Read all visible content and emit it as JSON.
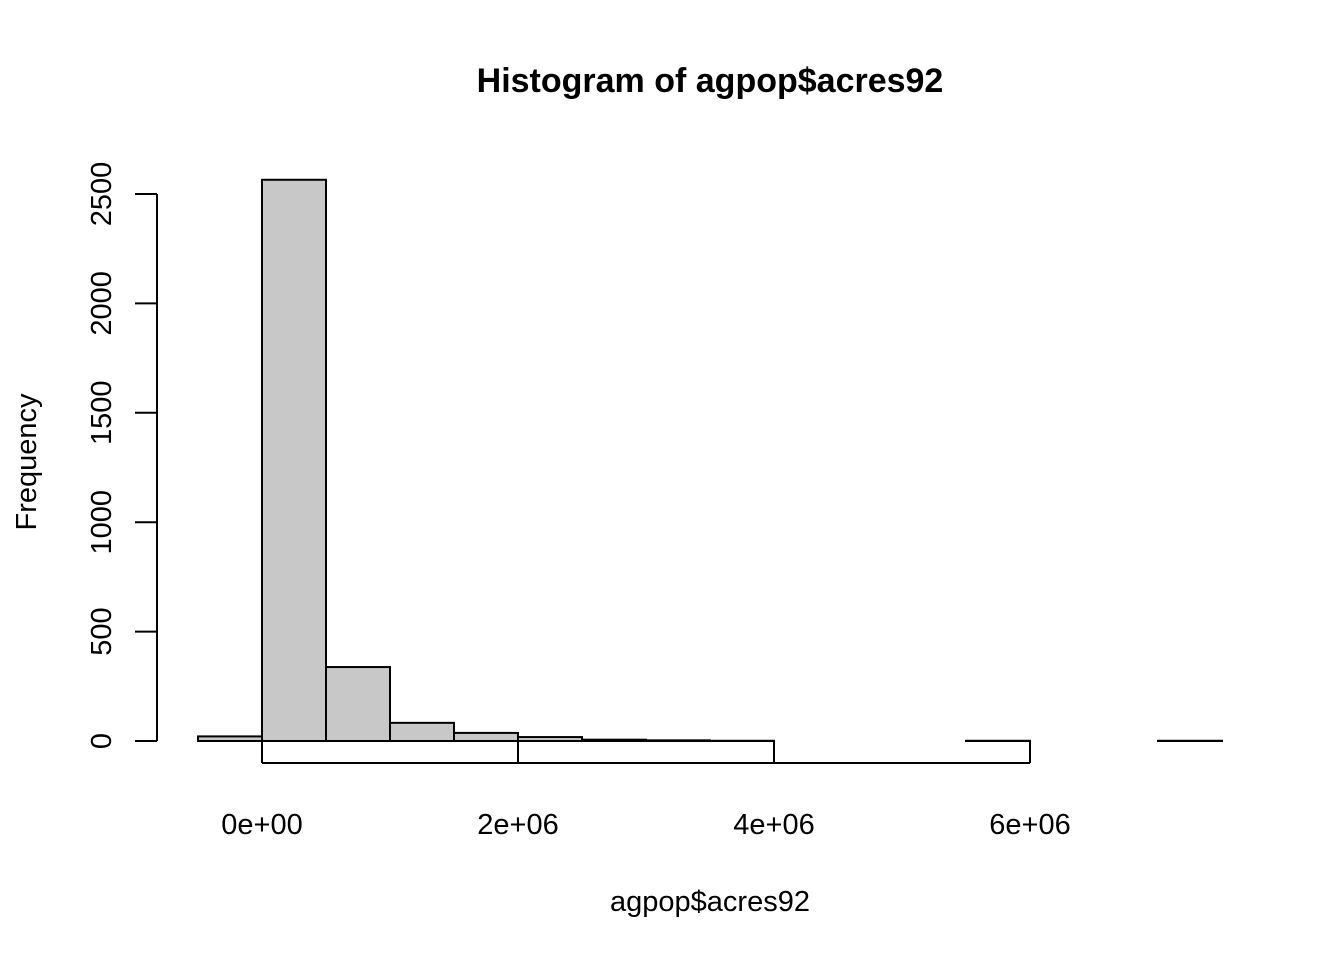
{
  "chart_data": {
    "type": "bar",
    "title": "Histogram of agpop$acres92",
    "xlabel": "agpop$acres92",
    "ylabel": "Frequency",
    "bin_edges": [
      -500000,
      0,
      500000,
      1000000,
      1500000,
      2000000,
      2500000,
      3000000,
      3500000,
      4000000,
      4500000,
      5000000,
      5500000,
      6000000,
      6500000,
      7000000,
      7500000
    ],
    "values": [
      21,
      2565,
      338,
      83,
      37,
      18,
      6,
      3,
      1,
      0,
      0,
      0,
      1,
      0,
      0,
      1
    ],
    "xlim": [
      -500000,
      7500000
    ],
    "ylim": [
      0,
      2500
    ],
    "x_ticks": [
      0,
      2000000,
      4000000,
      6000000
    ],
    "x_tick_labels": [
      "0e+00",
      "2e+06",
      "4e+06",
      "6e+06"
    ],
    "y_ticks": [
      0,
      500,
      1000,
      1500,
      2000,
      2500
    ],
    "y_tick_labels": [
      "0",
      "500",
      "1000",
      "1500",
      "2000",
      "2500"
    ],
    "bar_fill": "#c8c8c8",
    "grid": false,
    "legend": "none"
  }
}
